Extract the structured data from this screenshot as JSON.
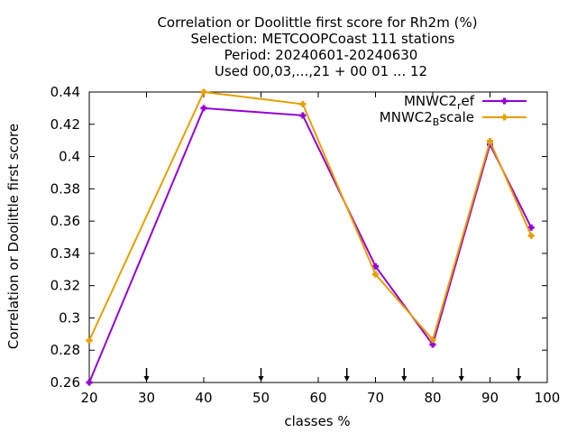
{
  "chart_data": {
    "type": "line",
    "title_lines": [
      "Correlation or Doolittle first score  for Rh2m (%)",
      "Selection: METCOOPCoast    111 stations",
      "Period: 20240601-20240630",
      "Used 00,03,...,21 + 00 01 ... 12"
    ],
    "xlabel": "classes %",
    "ylabel": "Correlation or Doolittle first score",
    "xlim": [
      20,
      100
    ],
    "ylim": [
      0.26,
      0.44
    ],
    "x_ticks": [
      20,
      30,
      40,
      50,
      60,
      70,
      80,
      90,
      100
    ],
    "y_ticks": [
      0.26,
      0.28,
      0.3,
      0.32,
      0.34,
      0.36,
      0.38,
      0.4,
      0.42,
      0.44
    ],
    "y_tick_labels": [
      "0.26",
      "0.28",
      "0.3",
      "0.32",
      "0.34",
      "0.36",
      "0.38",
      "0.4",
      "0.42",
      "0.44"
    ],
    "arrow_marks_x": [
      30,
      50,
      65,
      75,
      85,
      95
    ],
    "legend_position": "top-right",
    "series": [
      {
        "name": "MNWC2_ref",
        "legend_main": "MNWC2",
        "legend_sub": "r",
        "legend_rest": "ef",
        "color": "#9400d3",
        "x": [
          20,
          40,
          57.3,
          70,
          80,
          90,
          97.2
        ],
        "y": [
          0.26,
          0.43,
          0.4255,
          0.332,
          0.2835,
          0.4075,
          0.356
        ]
      },
      {
        "name": "MNWC2_Bscale",
        "legend_main": "MNWC2",
        "legend_sub": "B",
        "legend_rest": "scale",
        "color": "#e69f00",
        "x": [
          20,
          40,
          57.3,
          70,
          80,
          90,
          97.2
        ],
        "y": [
          0.286,
          0.44,
          0.4325,
          0.327,
          0.2865,
          0.4095,
          0.351
        ]
      }
    ]
  }
}
